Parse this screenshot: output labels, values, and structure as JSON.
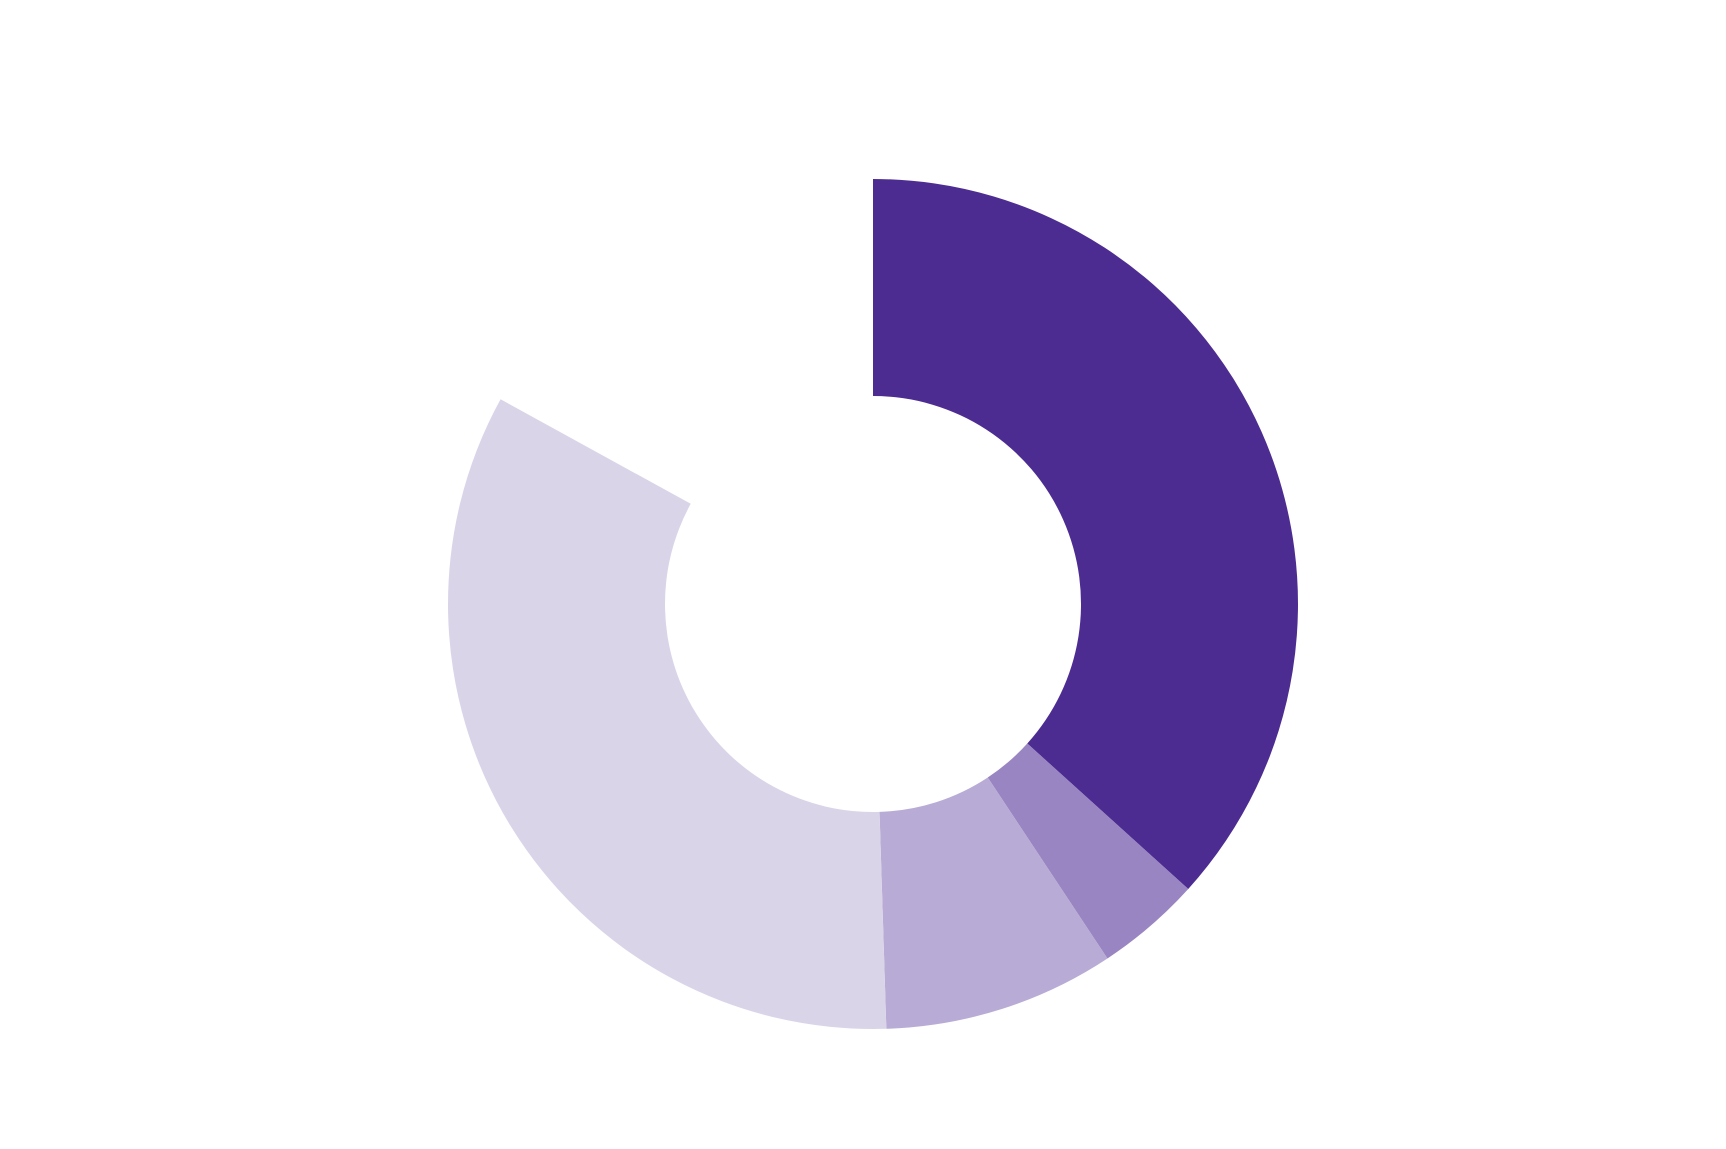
{
  "chart_data": {
    "type": "pie",
    "subtype": "donut",
    "start_angle_deg": 0,
    "direction": "clockwise",
    "title": "",
    "legend": "none",
    "slices": [
      {
        "value": 36.7,
        "color": "#4d2c92"
      },
      {
        "value": 4.0,
        "color": "#9985c2"
      },
      {
        "value": 8.8,
        "color": "#b8abd5"
      },
      {
        "value": 33.5,
        "color": "#dad4e9"
      }
    ],
    "remainder": {
      "value": 17.0,
      "color": "#ffffff"
    }
  }
}
